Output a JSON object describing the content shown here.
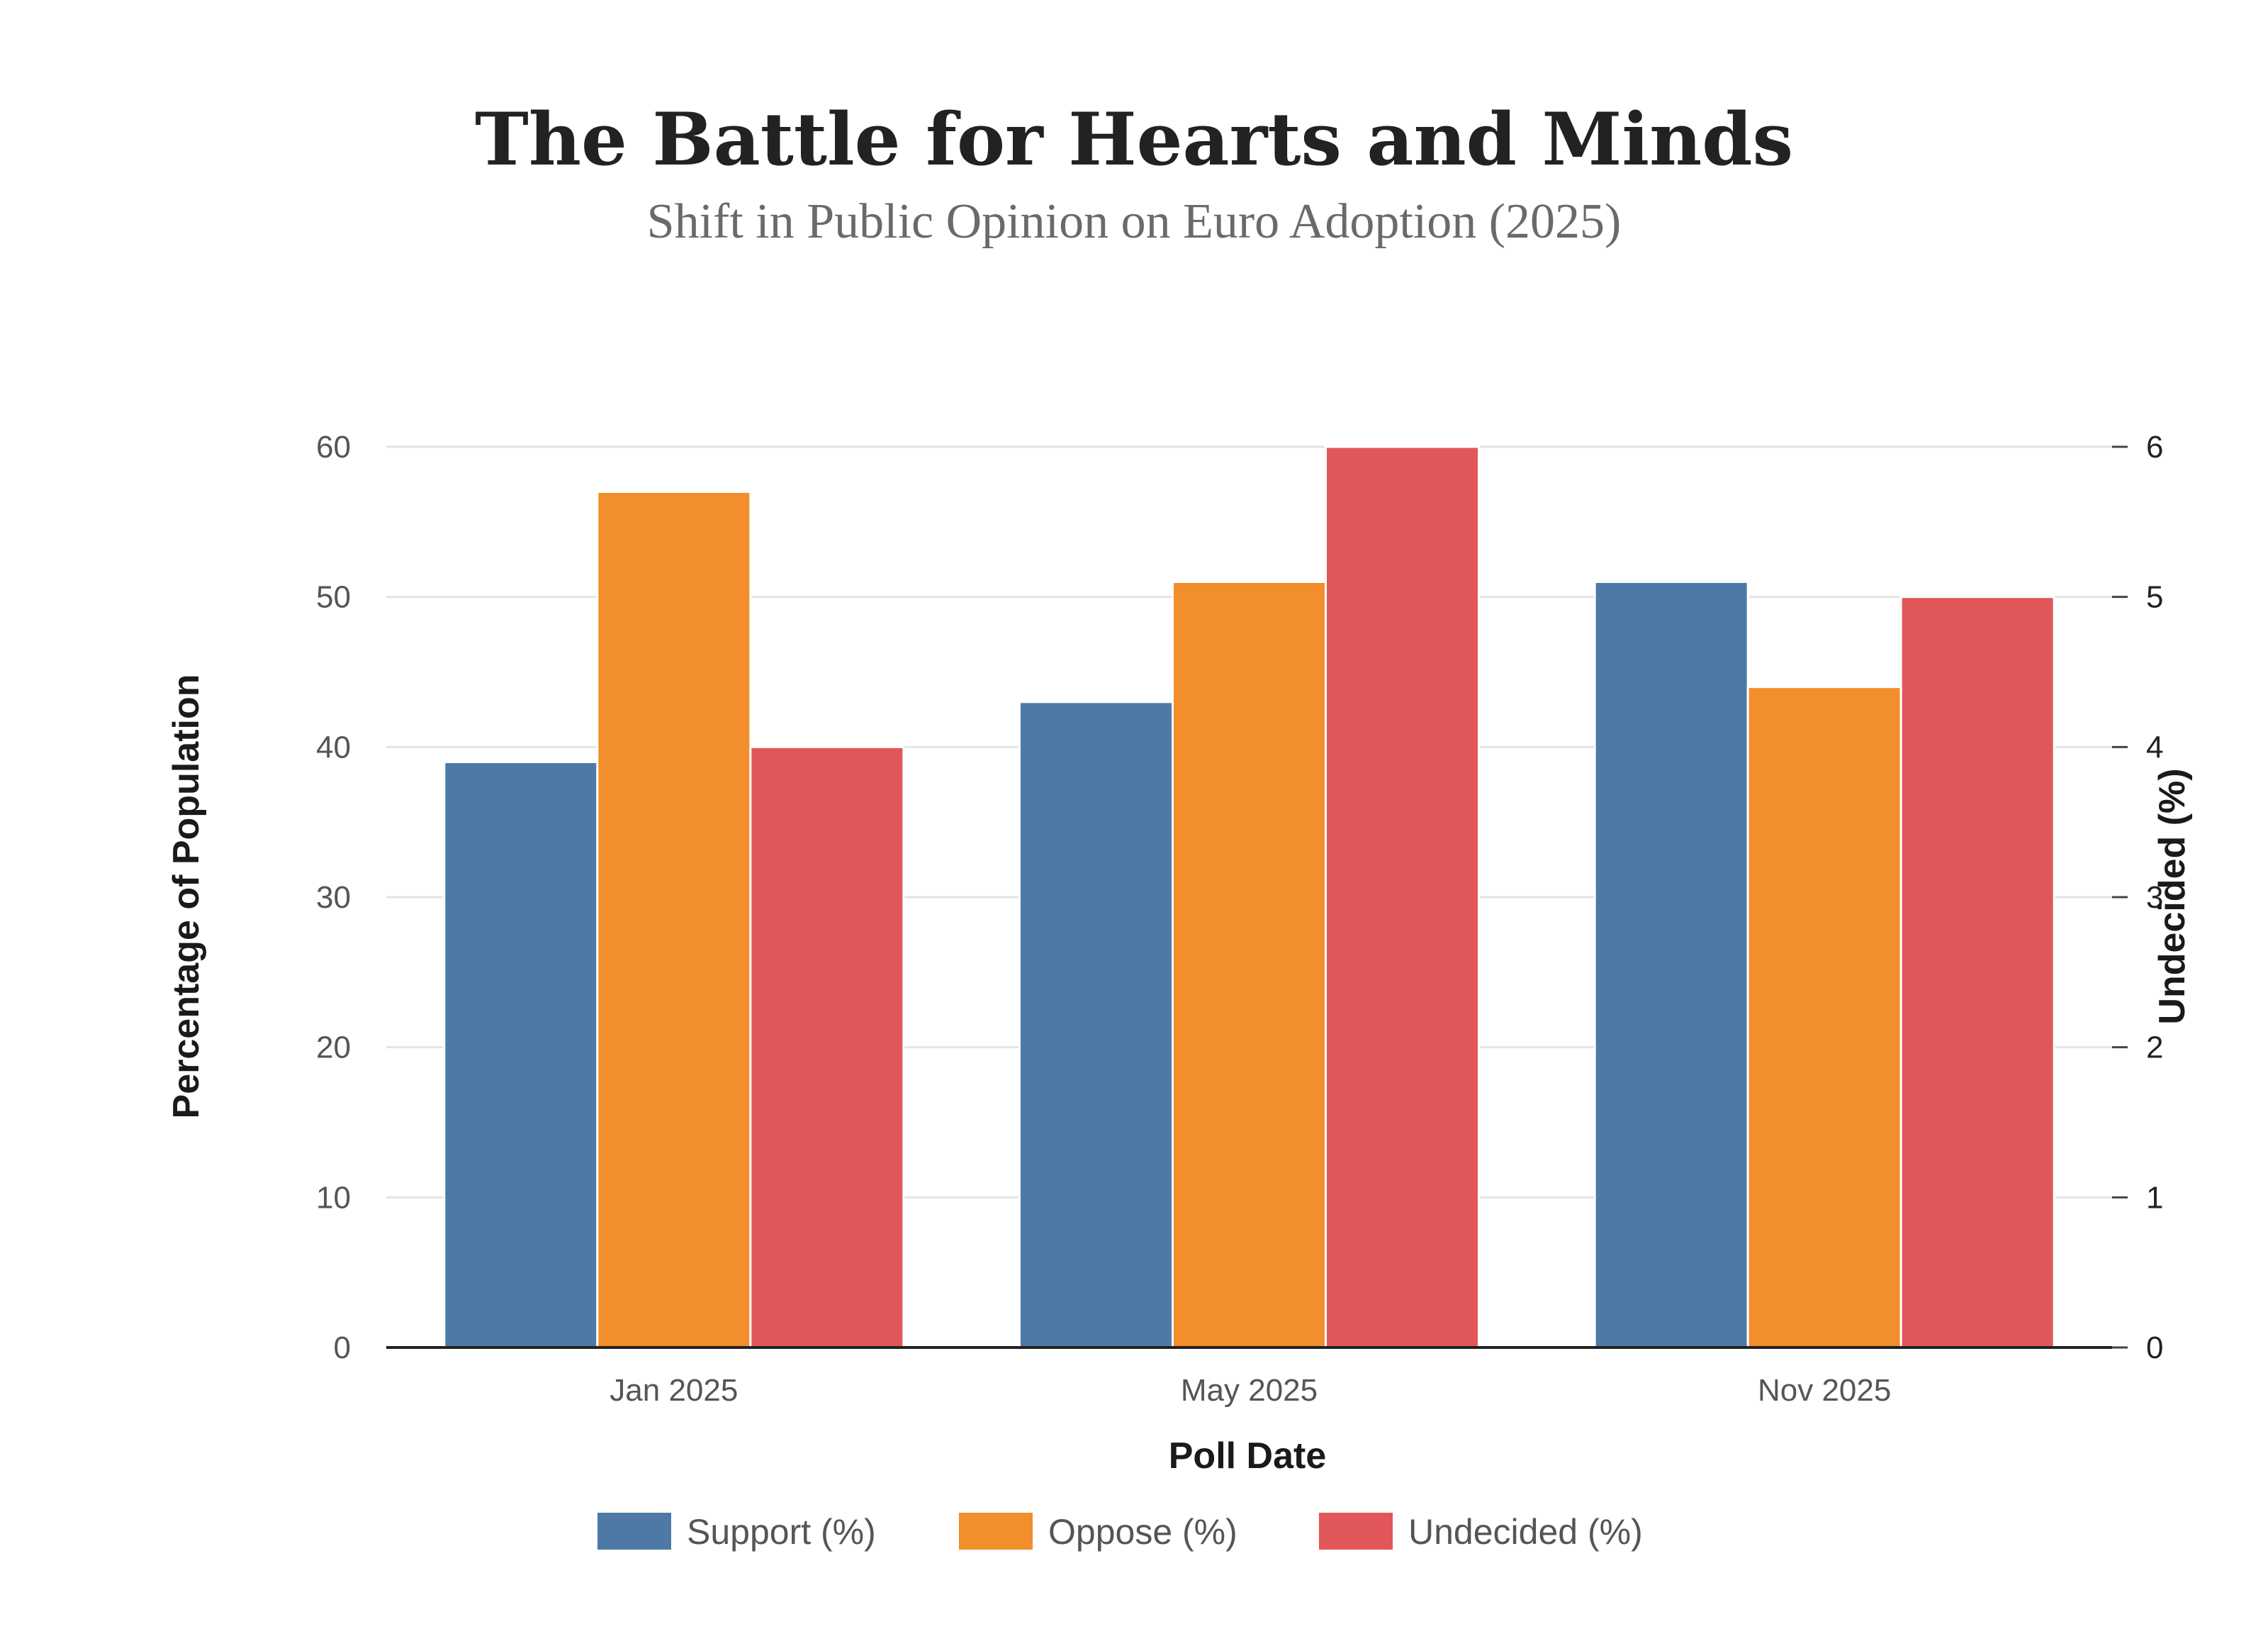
{
  "chart_data": {
    "type": "bar",
    "title": "The Battle for Hearts and Minds",
    "subtitle": "Shift in Public Opinion on Euro Adoption (2025)",
    "xlabel": "Poll Date",
    "ylabel": "Percentage of Population",
    "y2label": "Undecided (%)",
    "categories": [
      "Jan 2025",
      "May 2025",
      "Nov 2025"
    ],
    "ylim": [
      0,
      60
    ],
    "y2lim": [
      0,
      6
    ],
    "yticks": [
      "0",
      "10",
      "20",
      "30",
      "40",
      "50",
      "60"
    ],
    "y2ticks": [
      "0",
      "1",
      "2",
      "3",
      "4",
      "5",
      "6"
    ],
    "grid": true,
    "legend_position": "bottom-center",
    "series": [
      {
        "name": "Support (%)",
        "values": [
          39,
          43,
          51
        ],
        "axis": "left",
        "color": "#4e79a7"
      },
      {
        "name": "Oppose (%)",
        "values": [
          57,
          51,
          44
        ],
        "axis": "left",
        "color": "#f28e2b"
      },
      {
        "name": "Undecided (%)",
        "values": [
          4,
          6,
          5
        ],
        "axis": "right",
        "color": "#e15759"
      }
    ]
  }
}
